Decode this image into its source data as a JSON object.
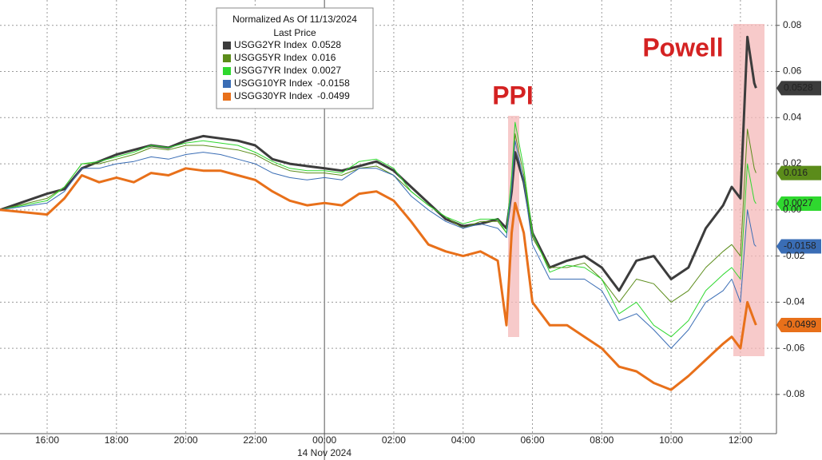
{
  "chart_data": {
    "type": "line",
    "legend_title": "Normalized As Of 11/13/2024",
    "legend_subtitle": "Last Price",
    "date_label": "14 Nov 2024",
    "annotations": [
      "PPI",
      "Powell"
    ],
    "grid": true,
    "xlim": [
      14.64,
      37.04
    ],
    "ylim": [
      -0.097,
      0.091
    ],
    "xticks": [
      {
        "value": 16,
        "label": "16:00"
      },
      {
        "value": 18,
        "label": "18:00"
      },
      {
        "value": 20,
        "label": "20:00"
      },
      {
        "value": 22,
        "label": "22:00"
      },
      {
        "value": 24,
        "label": "00:00"
      },
      {
        "value": 26,
        "label": "02:00"
      },
      {
        "value": 28,
        "label": "04:00"
      },
      {
        "value": 30,
        "label": "06:00"
      },
      {
        "value": 32,
        "label": "08:00"
      },
      {
        "value": 34,
        "label": "10:00"
      },
      {
        "value": 36,
        "label": "12:00"
      }
    ],
    "yticks": [
      0.08,
      0.06,
      0.04,
      0.02,
      {
        "value": 0,
        "label": "0.00"
      },
      -0.02,
      -0.04,
      -0.06,
      -0.08
    ],
    "x": [
      14.64,
      16,
      16.5,
      17,
      17.5,
      18,
      18.5,
      19,
      19.5,
      20,
      20.5,
      21,
      21.5,
      22,
      22.5,
      23,
      23.5,
      24,
      24.5,
      25,
      25.5,
      26,
      26.5,
      27,
      27.5,
      28,
      28.5,
      29,
      29.25,
      29.4,
      29.5,
      29.75,
      30,
      30.5,
      31,
      31.5,
      32,
      32.5,
      33,
      33.5,
      34,
      34.5,
      35,
      35.5,
      35.75,
      36,
      36.2,
      36.4,
      36.45
    ],
    "series": [
      {
        "name": "USGG2YR Index",
        "color": "#3c3c3c",
        "width": 3,
        "values": [
          0,
          0.007,
          0.009,
          0.018,
          0.021,
          0.024,
          0.026,
          0.028,
          0.027,
          0.03,
          0.032,
          0.031,
          0.03,
          0.028,
          0.022,
          0.02,
          0.019,
          0.018,
          0.017,
          0.019,
          0.021,
          0.017,
          0.01,
          0.003,
          -0.004,
          -0.007,
          -0.006,
          -0.004,
          -0.008,
          0.008,
          0.025,
          0.012,
          -0.01,
          -0.025,
          -0.022,
          -0.02,
          -0.025,
          -0.035,
          -0.022,
          -0.02,
          -0.03,
          -0.025,
          -0.008,
          0.002,
          0.01,
          0.005,
          0.075,
          0.055,
          0.0528
        ]
      },
      {
        "name": "USGG5YR Index",
        "color": "#5b8c1a",
        "width": 1,
        "values": [
          0,
          0.005,
          0.01,
          0.02,
          0.02,
          0.022,
          0.024,
          0.027,
          0.026,
          0.028,
          0.028,
          0.027,
          0.026,
          0.024,
          0.02,
          0.017,
          0.016,
          0.016,
          0.015,
          0.018,
          0.019,
          0.015,
          0.008,
          0.002,
          -0.003,
          -0.008,
          -0.005,
          -0.005,
          -0.01,
          0.012,
          0.033,
          0.015,
          -0.012,
          -0.025,
          -0.025,
          -0.023,
          -0.03,
          -0.04,
          -0.03,
          -0.032,
          -0.04,
          -0.035,
          -0.025,
          -0.018,
          -0.015,
          -0.02,
          0.035,
          0.018,
          0.016
        ]
      },
      {
        "name": "USGG7YR Index",
        "color": "#2fd82f",
        "width": 1,
        "values": [
          0,
          0.004,
          0.01,
          0.02,
          0.021,
          0.023,
          0.025,
          0.028,
          0.027,
          0.029,
          0.03,
          0.029,
          0.028,
          0.025,
          0.021,
          0.018,
          0.017,
          0.017,
          0.016,
          0.021,
          0.022,
          0.018,
          0.008,
          0.002,
          -0.003,
          -0.006,
          -0.004,
          -0.004,
          -0.01,
          0.015,
          0.038,
          0.018,
          -0.01,
          -0.027,
          -0.024,
          -0.025,
          -0.03,
          -0.045,
          -0.04,
          -0.05,
          -0.055,
          -0.048,
          -0.035,
          -0.028,
          -0.025,
          -0.03,
          0.02,
          0.004,
          0.0027
        ]
      },
      {
        "name": "USGG10YR Index",
        "color": "#3a6db5",
        "width": 1,
        "values": [
          0,
          0.003,
          0.008,
          0.018,
          0.018,
          0.02,
          0.021,
          0.023,
          0.022,
          0.024,
          0.025,
          0.024,
          0.022,
          0.02,
          0.016,
          0.014,
          0.013,
          0.014,
          0.013,
          0.018,
          0.018,
          0.015,
          0.006,
          0.0,
          -0.005,
          -0.008,
          -0.006,
          -0.008,
          -0.012,
          0.01,
          0.03,
          0.012,
          -0.015,
          -0.03,
          -0.03,
          -0.03,
          -0.035,
          -0.048,
          -0.045,
          -0.052,
          -0.06,
          -0.052,
          -0.04,
          -0.035,
          -0.03,
          -0.04,
          0.0,
          -0.015,
          -0.0158
        ]
      },
      {
        "name": "USGG30YR Index",
        "color": "#e8701a",
        "width": 3,
        "values": [
          0,
          -0.002,
          0.005,
          0.015,
          0.012,
          0.014,
          0.012,
          0.016,
          0.015,
          0.018,
          0.017,
          0.017,
          0.015,
          0.013,
          0.008,
          0.004,
          0.002,
          0.003,
          0.002,
          0.007,
          0.008,
          0.004,
          -0.005,
          -0.015,
          -0.018,
          -0.02,
          -0.018,
          -0.022,
          -0.05,
          -0.01,
          0.003,
          -0.01,
          -0.04,
          -0.05,
          -0.05,
          -0.055,
          -0.06,
          -0.068,
          -0.07,
          -0.075,
          -0.078,
          -0.072,
          -0.065,
          -0.058,
          -0.055,
          -0.06,
          -0.04,
          -0.048,
          -0.0499
        ]
      }
    ]
  }
}
